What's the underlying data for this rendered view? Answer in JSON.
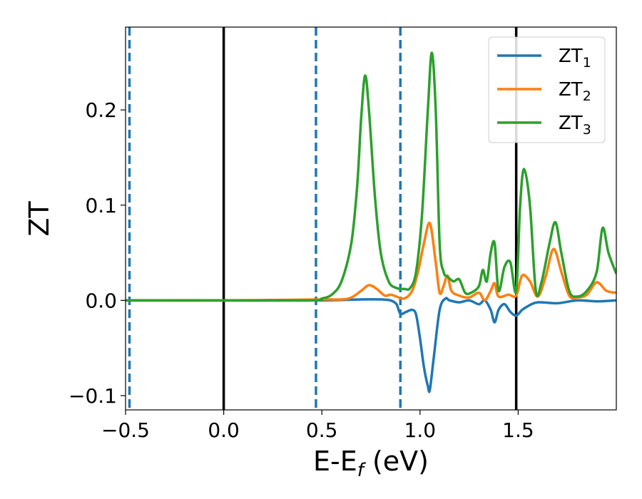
{
  "chart_data": {
    "type": "line",
    "xlabel": {
      "base": "E-E",
      "sub": "f",
      "rest": " (eV)"
    },
    "ylabel": "ZT",
    "xlim": [
      -0.5,
      2.0
    ],
    "ylim": [
      -0.115,
      0.287
    ],
    "xticks": [
      -0.5,
      0.0,
      0.5,
      1.0,
      1.5
    ],
    "xtick_labels": [
      "−0.5",
      "0.0",
      "0.5",
      "1.0",
      "1.5"
    ],
    "yticks": [
      -0.1,
      0.0,
      0.1,
      0.2
    ],
    "ytick_labels": [
      "−0.1",
      "0.0",
      "0.1",
      "0.2"
    ],
    "legend_position": "top-right",
    "vlines": [
      {
        "x": -0.48,
        "style": "dashed",
        "color": "#1f77b4"
      },
      {
        "x": 0.0,
        "style": "solid",
        "color": "#000000"
      },
      {
        "x": 0.47,
        "style": "dashed",
        "color": "#1f77b4"
      },
      {
        "x": 0.9,
        "style": "dashed",
        "color": "#1f77b4"
      },
      {
        "x": 1.49,
        "style": "solid",
        "color": "#000000"
      }
    ],
    "series": [
      {
        "name": "ZT",
        "sub": "1",
        "color": "#1f77b4",
        "x": [
          -0.5,
          0.0,
          0.5,
          0.7,
          0.8,
          0.85,
          0.88,
          0.9,
          0.93,
          0.96,
          0.98,
          1.0,
          1.02,
          1.04,
          1.05,
          1.07,
          1.1,
          1.13,
          1.15,
          1.2,
          1.25,
          1.3,
          1.33,
          1.36,
          1.38,
          1.4,
          1.43,
          1.46,
          1.49,
          1.52,
          1.55,
          1.6,
          1.7,
          1.8,
          1.9,
          2.0
        ],
        "y": [
          0.0,
          0.0,
          0.0,
          0.001,
          0.001,
          0.0,
          -0.004,
          -0.014,
          -0.012,
          -0.01,
          -0.015,
          -0.04,
          -0.07,
          -0.09,
          -0.094,
          -0.06,
          -0.01,
          0.002,
          0.0,
          -0.002,
          0.0,
          -0.004,
          0.0,
          -0.01,
          -0.023,
          -0.01,
          -0.004,
          -0.012,
          -0.016,
          -0.01,
          -0.006,
          -0.002,
          -0.003,
          0.0,
          -0.001,
          0.0
        ]
      },
      {
        "name": "ZT",
        "sub": "2",
        "color": "#ff7f0e",
        "x": [
          -0.5,
          0.0,
          0.5,
          0.6,
          0.65,
          0.7,
          0.74,
          0.78,
          0.82,
          0.85,
          0.88,
          0.92,
          0.96,
          0.99,
          1.02,
          1.05,
          1.08,
          1.1,
          1.12,
          1.14,
          1.16,
          1.2,
          1.25,
          1.3,
          1.33,
          1.36,
          1.38,
          1.4,
          1.45,
          1.49,
          1.52,
          1.56,
          1.6,
          1.64,
          1.68,
          1.72,
          1.76,
          1.8,
          1.85,
          1.9,
          1.95,
          2.0
        ],
        "y": [
          0.0,
          0.0,
          0.001,
          0.001,
          0.003,
          0.01,
          0.016,
          0.012,
          0.005,
          0.006,
          0.004,
          0.002,
          0.01,
          0.03,
          0.06,
          0.081,
          0.04,
          0.008,
          0.015,
          0.026,
          0.01,
          0.005,
          0.003,
          0.008,
          0.0,
          0.01,
          0.018,
          0.004,
          0.006,
          0.005,
          0.026,
          0.02,
          0.004,
          0.025,
          0.054,
          0.03,
          0.005,
          0.003,
          0.006,
          0.019,
          0.01,
          0.008
        ]
      },
      {
        "name": "ZT",
        "sub": "3",
        "color": "#2ca02c",
        "x": [
          -0.5,
          0.0,
          0.45,
          0.5,
          0.55,
          0.6,
          0.65,
          0.68,
          0.7,
          0.72,
          0.74,
          0.77,
          0.8,
          0.84,
          0.88,
          0.92,
          0.95,
          0.98,
          1.01,
          1.04,
          1.06,
          1.08,
          1.1,
          1.12,
          1.14,
          1.17,
          1.2,
          1.23,
          1.26,
          1.3,
          1.32,
          1.34,
          1.36,
          1.38,
          1.4,
          1.43,
          1.46,
          1.49,
          1.51,
          1.53,
          1.56,
          1.59,
          1.62,
          1.66,
          1.69,
          1.72,
          1.76,
          1.8,
          1.85,
          1.9,
          1.93,
          1.96,
          2.0
        ],
        "y": [
          0.0,
          0.0,
          0.0,
          0.002,
          0.006,
          0.02,
          0.06,
          0.12,
          0.19,
          0.236,
          0.2,
          0.11,
          0.05,
          0.02,
          0.013,
          0.012,
          0.013,
          0.03,
          0.09,
          0.2,
          0.26,
          0.2,
          0.06,
          0.03,
          0.025,
          0.02,
          0.022,
          0.008,
          0.008,
          0.015,
          0.032,
          0.02,
          0.05,
          0.06,
          0.01,
          0.035,
          0.04,
          0.01,
          0.1,
          0.138,
          0.1,
          0.01,
          0.02,
          0.06,
          0.082,
          0.05,
          0.01,
          0.004,
          0.01,
          0.03,
          0.076,
          0.05,
          0.028
        ]
      }
    ]
  }
}
